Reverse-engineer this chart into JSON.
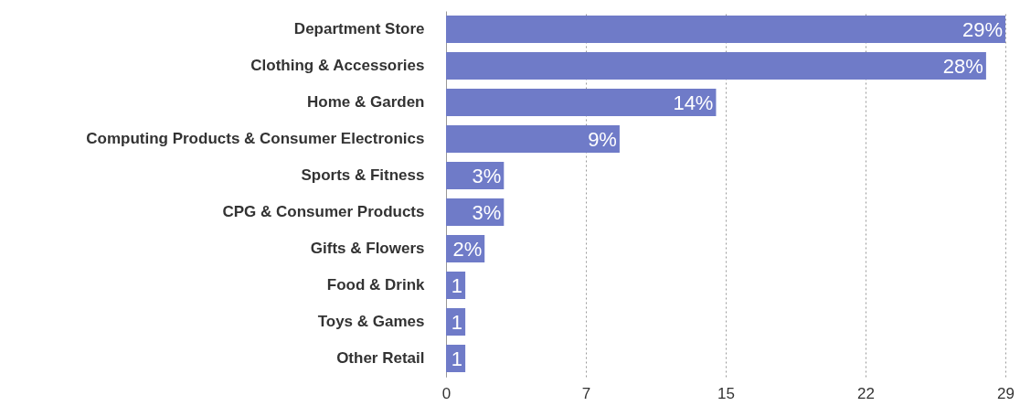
{
  "chart_data": {
    "type": "bar",
    "orientation": "horizontal",
    "categories": [
      "Department Store",
      "Clothing & Accessories",
      "Home & Garden",
      "Computing Products & Consumer Electronics",
      "Sports & Fitness",
      "CPG & Consumer Products",
      "Gifts & Flowers",
      "Food & Drink",
      "Toys & Games",
      "Other Retail"
    ],
    "values": [
      29,
      28,
      14,
      9,
      3,
      3,
      2,
      1,
      1,
      1
    ],
    "value_labels": [
      "29%",
      "28%",
      "14%",
      "9%",
      "3%",
      "3%",
      "2%",
      "1",
      "1",
      "1"
    ],
    "color": "#6f7bc8",
    "xlim": [
      0,
      29
    ],
    "xticks": [
      0,
      {
        "value": 7.25,
        "label": "7"
      },
      {
        "value": 14.5,
        "label": "15"
      },
      {
        "value": 21.75,
        "label": "22"
      },
      29
    ],
    "grid": "x"
  }
}
